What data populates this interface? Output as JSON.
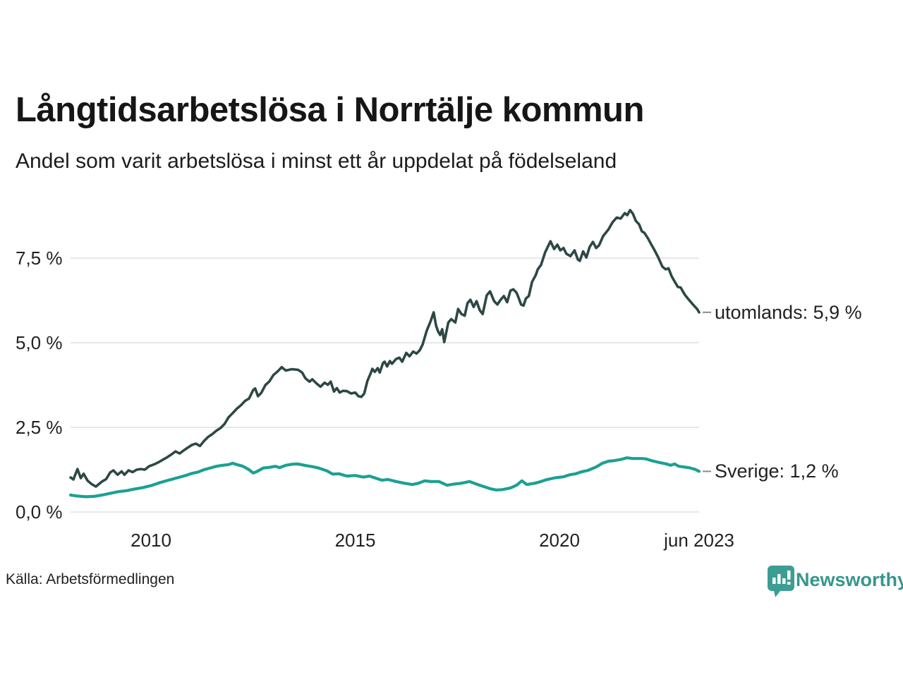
{
  "header": {
    "title": "Långtidsarbetslösa i Norrtälje kommun",
    "subtitle": "Andel som varit arbetslösa i minst ett år uppdelat på födelseland"
  },
  "footer": {
    "source": "Källa: Arbetsförmedlingen",
    "brand": "Newsworthy"
  },
  "colors": {
    "utomlands_line": "#2C4845",
    "sverige_line": "#1BA093",
    "grid": "#E7E7EA",
    "leader_dash": "#8A8A8A",
    "label_text": "#222222",
    "brand_teal": "#3C9D94"
  },
  "chart_data": {
    "type": "line",
    "title": "Långtidsarbetslösa i Norrtälje kommun",
    "subtitle": "Andel som varit arbetslösa i minst ett år uppdelat på födelseland",
    "xlabel": "",
    "ylabel": "",
    "xlim": [
      2008.03,
      2023.42
    ],
    "ylim": [
      0,
      8.96
    ],
    "grid": "horizontal",
    "legend_position": "right-of-line-ends",
    "x_ticks": [
      {
        "label": "2010",
        "year": 2010
      },
      {
        "label": "2015",
        "year": 2015
      },
      {
        "label": "2020",
        "year": 2020
      },
      {
        "label": "jun 2023",
        "year": 2023.42
      }
    ],
    "y_ticks": [
      {
        "label": "0,0 %",
        "value": 0
      },
      {
        "label": "2,5 %",
        "value": 2.5
      },
      {
        "label": "5,0 %",
        "value": 5.0
      },
      {
        "label": "7,5 %",
        "value": 7.5
      }
    ],
    "series": [
      {
        "name": "utomlands",
        "label": "utomlands: 5,9 %",
        "end_value": "5,9 %",
        "color": "#2C4845",
        "width": 3.6,
        "points": [
          [
            2008.03,
            1.02
          ],
          [
            2008.1,
            0.96
          ],
          [
            2008.2,
            1.27
          ],
          [
            2008.28,
            1.0
          ],
          [
            2008.35,
            1.13
          ],
          [
            2008.45,
            0.92
          ],
          [
            2008.55,
            0.82
          ],
          [
            2008.65,
            0.75
          ],
          [
            2008.8,
            0.9
          ],
          [
            2008.9,
            0.97
          ],
          [
            2009.0,
            1.17
          ],
          [
            2009.08,
            1.23
          ],
          [
            2009.18,
            1.1
          ],
          [
            2009.28,
            1.2
          ],
          [
            2009.35,
            1.1
          ],
          [
            2009.45,
            1.23
          ],
          [
            2009.55,
            1.18
          ],
          [
            2009.65,
            1.25
          ],
          [
            2009.75,
            1.27
          ],
          [
            2009.85,
            1.25
          ],
          [
            2009.95,
            1.35
          ],
          [
            2010.1,
            1.42
          ],
          [
            2010.2,
            1.48
          ],
          [
            2010.3,
            1.55
          ],
          [
            2010.4,
            1.62
          ],
          [
            2010.5,
            1.7
          ],
          [
            2010.6,
            1.79
          ],
          [
            2010.7,
            1.73
          ],
          [
            2010.8,
            1.82
          ],
          [
            2010.9,
            1.9
          ],
          [
            2011.0,
            1.98
          ],
          [
            2011.1,
            2.02
          ],
          [
            2011.2,
            1.95
          ],
          [
            2011.3,
            2.1
          ],
          [
            2011.4,
            2.22
          ],
          [
            2011.5,
            2.3
          ],
          [
            2011.6,
            2.4
          ],
          [
            2011.7,
            2.48
          ],
          [
            2011.8,
            2.6
          ],
          [
            2011.9,
            2.8
          ],
          [
            2012.0,
            2.92
          ],
          [
            2012.1,
            3.05
          ],
          [
            2012.2,
            3.15
          ],
          [
            2012.3,
            3.28
          ],
          [
            2012.4,
            3.35
          ],
          [
            2012.5,
            3.6
          ],
          [
            2012.55,
            3.65
          ],
          [
            2012.62,
            3.42
          ],
          [
            2012.7,
            3.52
          ],
          [
            2012.8,
            3.75
          ],
          [
            2012.9,
            3.86
          ],
          [
            2013.0,
            4.05
          ],
          [
            2013.1,
            4.15
          ],
          [
            2013.2,
            4.28
          ],
          [
            2013.3,
            4.18
          ],
          [
            2013.45,
            4.22
          ],
          [
            2013.6,
            4.2
          ],
          [
            2013.7,
            4.12
          ],
          [
            2013.78,
            3.95
          ],
          [
            2013.88,
            3.85
          ],
          [
            2013.95,
            3.92
          ],
          [
            2014.05,
            3.8
          ],
          [
            2014.15,
            3.7
          ],
          [
            2014.25,
            3.82
          ],
          [
            2014.33,
            3.76
          ],
          [
            2014.4,
            3.85
          ],
          [
            2014.48,
            3.56
          ],
          [
            2014.55,
            3.66
          ],
          [
            2014.62,
            3.53
          ],
          [
            2014.7,
            3.58
          ],
          [
            2014.8,
            3.57
          ],
          [
            2014.9,
            3.5
          ],
          [
            2015.0,
            3.53
          ],
          [
            2015.08,
            3.42
          ],
          [
            2015.15,
            3.4
          ],
          [
            2015.22,
            3.5
          ],
          [
            2015.3,
            3.88
          ],
          [
            2015.38,
            4.1
          ],
          [
            2015.42,
            4.23
          ],
          [
            2015.48,
            4.14
          ],
          [
            2015.55,
            4.25
          ],
          [
            2015.6,
            4.12
          ],
          [
            2015.68,
            4.4
          ],
          [
            2015.72,
            4.44
          ],
          [
            2015.78,
            4.3
          ],
          [
            2015.85,
            4.46
          ],
          [
            2015.9,
            4.38
          ],
          [
            2016.0,
            4.52
          ],
          [
            2016.08,
            4.56
          ],
          [
            2016.15,
            4.44
          ],
          [
            2016.25,
            4.7
          ],
          [
            2016.33,
            4.6
          ],
          [
            2016.42,
            4.74
          ],
          [
            2016.5,
            4.68
          ],
          [
            2016.58,
            4.78
          ],
          [
            2016.65,
            4.95
          ],
          [
            2016.75,
            5.35
          ],
          [
            2016.85,
            5.65
          ],
          [
            2016.92,
            5.9
          ],
          [
            2016.98,
            5.5
          ],
          [
            2017.03,
            5.33
          ],
          [
            2017.08,
            5.23
          ],
          [
            2017.13,
            5.4
          ],
          [
            2017.18,
            5.02
          ],
          [
            2017.28,
            5.6
          ],
          [
            2017.35,
            5.7
          ],
          [
            2017.45,
            5.6
          ],
          [
            2017.52,
            6.0
          ],
          [
            2017.6,
            5.85
          ],
          [
            2017.68,
            5.8
          ],
          [
            2017.75,
            6.17
          ],
          [
            2017.82,
            6.27
          ],
          [
            2017.9,
            6.06
          ],
          [
            2017.97,
            6.23
          ],
          [
            2018.05,
            5.96
          ],
          [
            2018.12,
            5.85
          ],
          [
            2018.22,
            6.4
          ],
          [
            2018.3,
            6.52
          ],
          [
            2018.4,
            6.23
          ],
          [
            2018.48,
            6.13
          ],
          [
            2018.56,
            6.27
          ],
          [
            2018.64,
            6.38
          ],
          [
            2018.72,
            6.2
          ],
          [
            2018.8,
            6.54
          ],
          [
            2018.87,
            6.58
          ],
          [
            2018.95,
            6.48
          ],
          [
            2019.0,
            6.33
          ],
          [
            2019.06,
            6.13
          ],
          [
            2019.12,
            6.1
          ],
          [
            2019.18,
            6.31
          ],
          [
            2019.25,
            6.38
          ],
          [
            2019.33,
            6.8
          ],
          [
            2019.42,
            7.0
          ],
          [
            2019.47,
            7.17
          ],
          [
            2019.55,
            7.3
          ],
          [
            2019.65,
            7.67
          ],
          [
            2019.78,
            8.0
          ],
          [
            2019.87,
            7.77
          ],
          [
            2019.95,
            7.9
          ],
          [
            2020.02,
            7.73
          ],
          [
            2020.1,
            7.8
          ],
          [
            2020.17,
            7.63
          ],
          [
            2020.27,
            7.56
          ],
          [
            2020.37,
            7.73
          ],
          [
            2020.45,
            7.46
          ],
          [
            2020.5,
            7.42
          ],
          [
            2020.58,
            7.7
          ],
          [
            2020.66,
            7.52
          ],
          [
            2020.74,
            7.83
          ],
          [
            2020.82,
            7.98
          ],
          [
            2020.9,
            7.8
          ],
          [
            2020.97,
            7.88
          ],
          [
            2021.07,
            8.15
          ],
          [
            2021.2,
            8.35
          ],
          [
            2021.3,
            8.56
          ],
          [
            2021.4,
            8.7
          ],
          [
            2021.5,
            8.67
          ],
          [
            2021.6,
            8.83
          ],
          [
            2021.66,
            8.77
          ],
          [
            2021.73,
            8.92
          ],
          [
            2021.8,
            8.81
          ],
          [
            2021.87,
            8.6
          ],
          [
            2021.95,
            8.5
          ],
          [
            2022.02,
            8.29
          ],
          [
            2022.08,
            8.25
          ],
          [
            2022.17,
            8.08
          ],
          [
            2022.25,
            7.9
          ],
          [
            2022.33,
            7.73
          ],
          [
            2022.42,
            7.52
          ],
          [
            2022.52,
            7.25
          ],
          [
            2022.6,
            7.17
          ],
          [
            2022.67,
            7.2
          ],
          [
            2022.75,
            6.96
          ],
          [
            2022.83,
            6.79
          ],
          [
            2022.9,
            6.65
          ],
          [
            2022.97,
            6.63
          ],
          [
            2023.07,
            6.42
          ],
          [
            2023.17,
            6.27
          ],
          [
            2023.27,
            6.13
          ],
          [
            2023.37,
            6.0
          ],
          [
            2023.42,
            5.9
          ]
        ]
      },
      {
        "name": "Sverige",
        "label": "Sverige: 1,2 %",
        "end_value": "1,2 %",
        "color": "#1BA093",
        "width": 4.2,
        "points": [
          [
            2008.03,
            0.5
          ],
          [
            2008.2,
            0.47
          ],
          [
            2008.4,
            0.45
          ],
          [
            2008.6,
            0.46
          ],
          [
            2008.8,
            0.5
          ],
          [
            2009.0,
            0.55
          ],
          [
            2009.2,
            0.6
          ],
          [
            2009.4,
            0.63
          ],
          [
            2009.6,
            0.68
          ],
          [
            2009.8,
            0.72
          ],
          [
            2010.0,
            0.78
          ],
          [
            2010.2,
            0.86
          ],
          [
            2010.4,
            0.93
          ],
          [
            2010.55,
            0.98
          ],
          [
            2010.7,
            1.03
          ],
          [
            2010.85,
            1.08
          ],
          [
            2011.0,
            1.14
          ],
          [
            2011.15,
            1.18
          ],
          [
            2011.3,
            1.25
          ],
          [
            2011.45,
            1.3
          ],
          [
            2011.6,
            1.35
          ],
          [
            2011.75,
            1.38
          ],
          [
            2011.9,
            1.4
          ],
          [
            2012.0,
            1.44
          ],
          [
            2012.1,
            1.4
          ],
          [
            2012.25,
            1.35
          ],
          [
            2012.4,
            1.25
          ],
          [
            2012.5,
            1.15
          ],
          [
            2012.6,
            1.2
          ],
          [
            2012.75,
            1.3
          ],
          [
            2012.9,
            1.32
          ],
          [
            2013.05,
            1.35
          ],
          [
            2013.15,
            1.31
          ],
          [
            2013.3,
            1.38
          ],
          [
            2013.45,
            1.41
          ],
          [
            2013.6,
            1.42
          ],
          [
            2013.8,
            1.37
          ],
          [
            2013.95,
            1.34
          ],
          [
            2014.1,
            1.3
          ],
          [
            2014.3,
            1.22
          ],
          [
            2014.45,
            1.12
          ],
          [
            2014.6,
            1.13
          ],
          [
            2014.8,
            1.06
          ],
          [
            2015.0,
            1.08
          ],
          [
            2015.2,
            1.03
          ],
          [
            2015.35,
            1.06
          ],
          [
            2015.5,
            1.0
          ],
          [
            2015.65,
            0.94
          ],
          [
            2015.8,
            0.96
          ],
          [
            2016.0,
            0.9
          ],
          [
            2016.2,
            0.85
          ],
          [
            2016.4,
            0.81
          ],
          [
            2016.55,
            0.85
          ],
          [
            2016.7,
            0.92
          ],
          [
            2016.85,
            0.9
          ],
          [
            2017.05,
            0.9
          ],
          [
            2017.25,
            0.79
          ],
          [
            2017.4,
            0.82
          ],
          [
            2017.6,
            0.85
          ],
          [
            2017.8,
            0.9
          ],
          [
            2018.0,
            0.81
          ],
          [
            2018.15,
            0.75
          ],
          [
            2018.3,
            0.69
          ],
          [
            2018.45,
            0.65
          ],
          [
            2018.6,
            0.66
          ],
          [
            2018.8,
            0.71
          ],
          [
            2018.95,
            0.79
          ],
          [
            2019.08,
            0.92
          ],
          [
            2019.2,
            0.81
          ],
          [
            2019.4,
            0.85
          ],
          [
            2019.55,
            0.9
          ],
          [
            2019.7,
            0.96
          ],
          [
            2019.9,
            1.01
          ],
          [
            2020.1,
            1.04
          ],
          [
            2020.25,
            1.1
          ],
          [
            2020.4,
            1.13
          ],
          [
            2020.55,
            1.19
          ],
          [
            2020.7,
            1.23
          ],
          [
            2020.9,
            1.33
          ],
          [
            2021.05,
            1.44
          ],
          [
            2021.2,
            1.5
          ],
          [
            2021.35,
            1.52
          ],
          [
            2021.5,
            1.55
          ],
          [
            2021.65,
            1.6
          ],
          [
            2021.8,
            1.58
          ],
          [
            2022.0,
            1.58
          ],
          [
            2022.12,
            1.57
          ],
          [
            2022.25,
            1.52
          ],
          [
            2022.38,
            1.48
          ],
          [
            2022.5,
            1.45
          ],
          [
            2022.62,
            1.42
          ],
          [
            2022.72,
            1.38
          ],
          [
            2022.82,
            1.42
          ],
          [
            2022.92,
            1.35
          ],
          [
            2023.05,
            1.33
          ],
          [
            2023.2,
            1.3
          ],
          [
            2023.32,
            1.26
          ],
          [
            2023.42,
            1.2
          ]
        ]
      }
    ]
  }
}
